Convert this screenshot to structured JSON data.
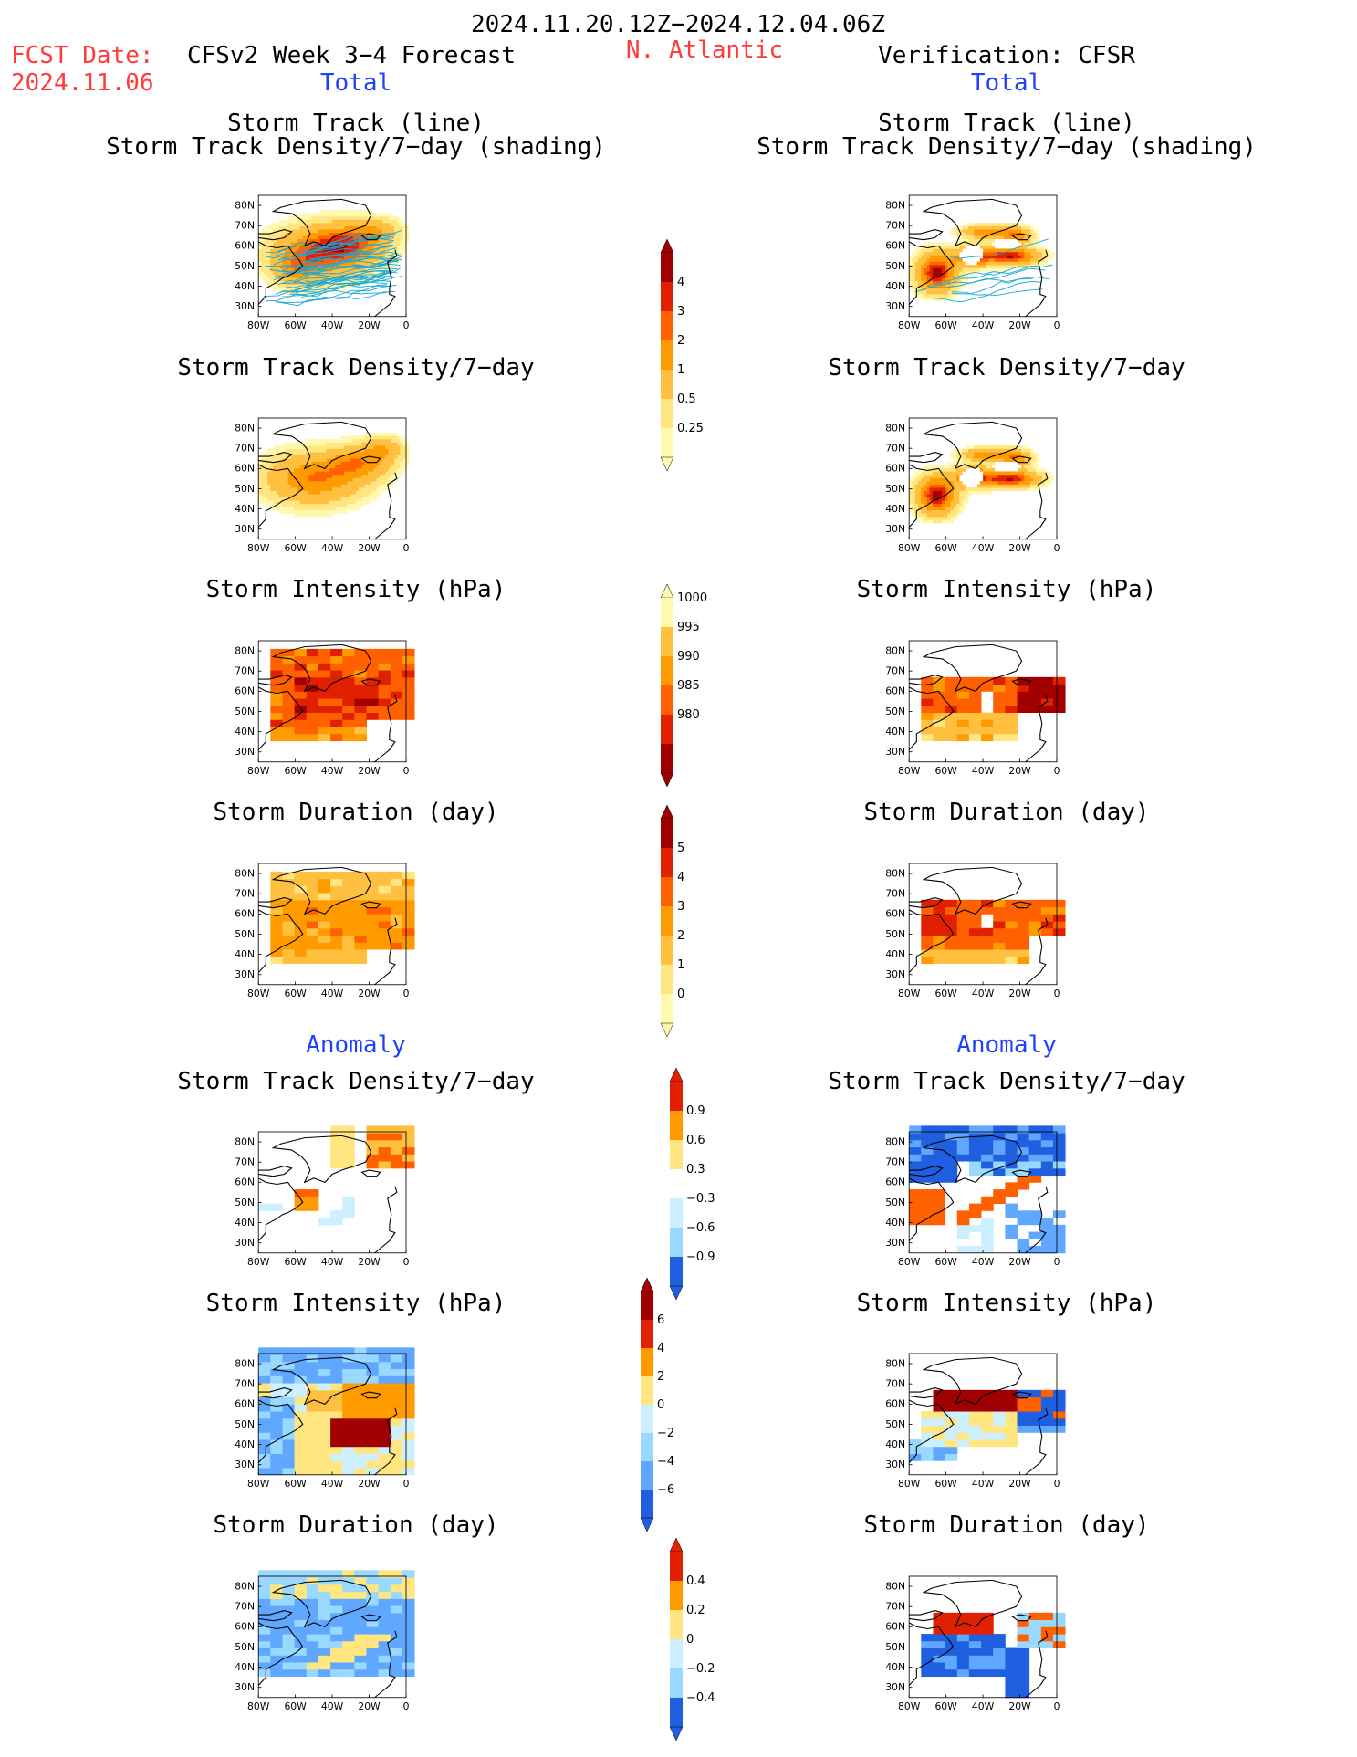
{
  "header": {
    "period": "2024.11.20.12Z−2024.12.04.06Z",
    "fcst_label": "FCST Date:",
    "fcst_date": "2024.11.06",
    "model": "CFSv2 Week 3−4 Forecast",
    "region": "N. Atlantic",
    "verification": "Verification: CFSR"
  },
  "sections": {
    "total": "Total",
    "anomaly": "Anomaly"
  },
  "titles": {
    "track_line": "Storm Track (line)",
    "track_shading": "Storm Track Density/7−day (shading)",
    "density": "Storm Track Density/7−day",
    "intensity": "Storm Intensity (hPa)",
    "duration": "Storm Duration (day)"
  },
  "axes": {
    "lon": [
      "80W",
      "60W",
      "40W",
      "20W",
      "0"
    ],
    "lat": [
      "80N",
      "70N",
      "60N",
      "50N",
      "40N",
      "30N"
    ]
  },
  "colorbars": {
    "density_total": [
      "4",
      "3",
      "2",
      "1",
      "0.5",
      "0.25"
    ],
    "intensity_total": [
      "1000",
      "995",
      "990",
      "985",
      "980"
    ],
    "duration_total": [
      "5",
      "4",
      "3",
      "2",
      "1",
      "0"
    ],
    "density_anom": [
      "0.9",
      "0.6",
      "0.3",
      "−0.3",
      "−0.6",
      "−0.9"
    ],
    "intensity_anom": [
      "6",
      "4",
      "2",
      "0",
      "−2",
      "−4",
      "−6"
    ],
    "duration_anom": [
      "0.4",
      "0.2",
      "0",
      "−0.2",
      "−0.4"
    ]
  },
  "colors": {
    "title_red": "#ff3b3b",
    "title_blue": "#2040ff",
    "warm": [
      "#fff9b0",
      "#ffe680",
      "#ffc040",
      "#ff9a00",
      "#ff6000",
      "#e02000",
      "#a00000"
    ],
    "cool": [
      "#ccf0ff",
      "#99d8ff",
      "#60a8ff",
      "#2060e0"
    ]
  }
}
